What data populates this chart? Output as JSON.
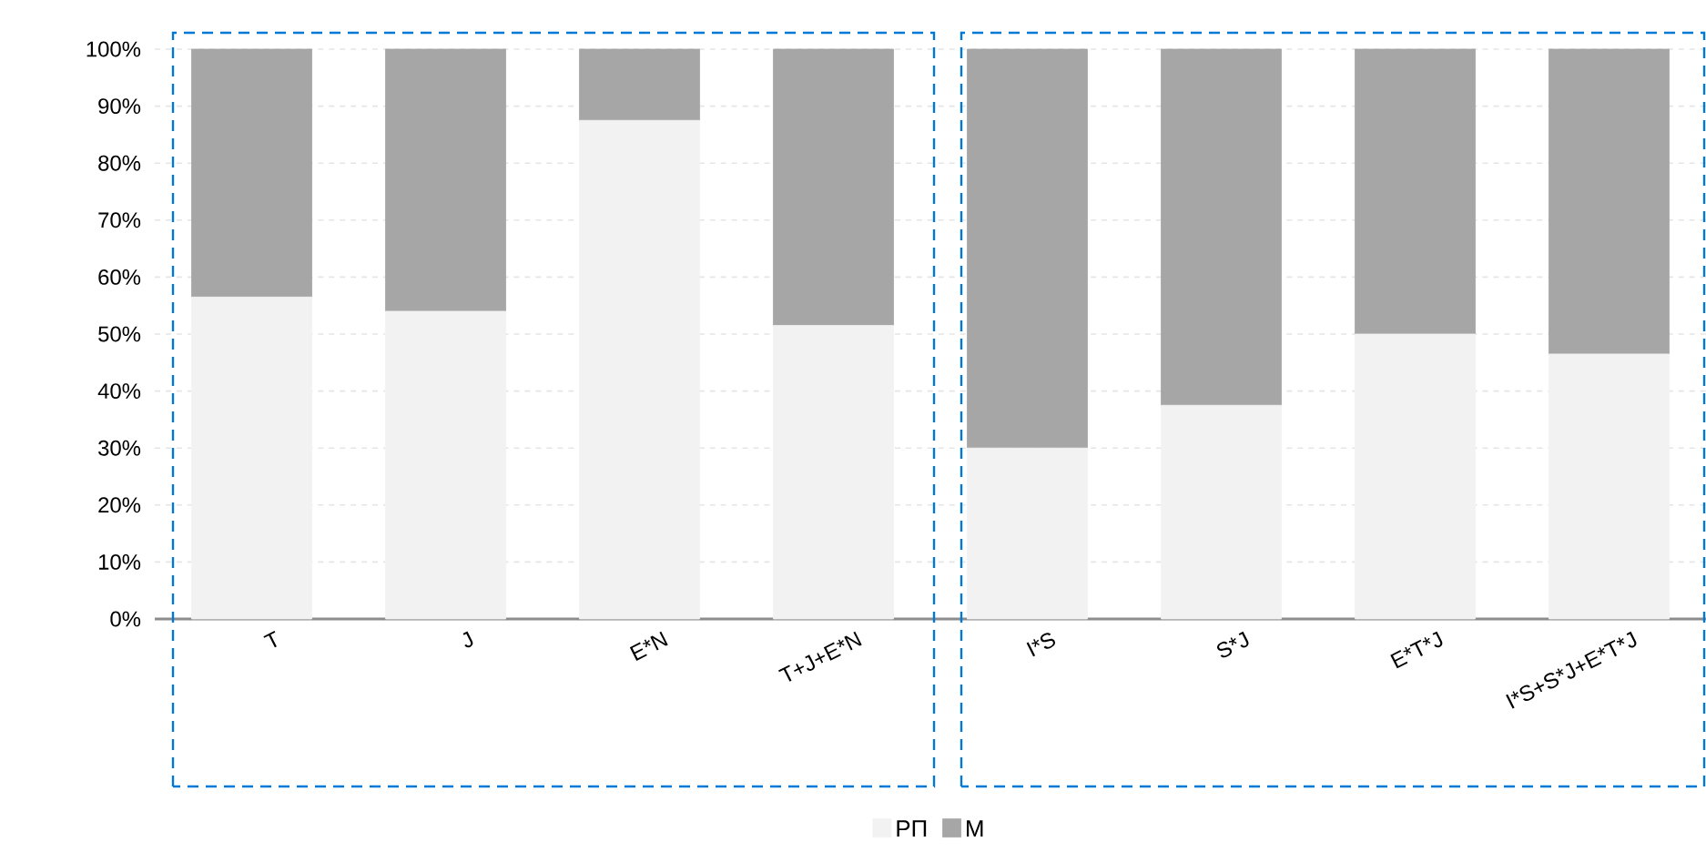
{
  "chart_data": {
    "type": "bar",
    "stacked": true,
    "categories": [
      "T",
      "J",
      "E*N",
      "T+J+E*N",
      "I*S",
      "S*J",
      "E*T*J",
      "I*S+S*J+E*T*J"
    ],
    "series": [
      {
        "name": "РП",
        "color": "#f2f2f2",
        "values": [
          56.5,
          54,
          87.5,
          51.5,
          30,
          37.5,
          50,
          46.5
        ]
      },
      {
        "name": "М",
        "color": "#a6a6a6",
        "values": [
          43.5,
          46,
          12.5,
          48.5,
          70,
          62.5,
          50,
          53.5
        ]
      }
    ],
    "ylim": [
      0,
      100
    ],
    "yticks": [
      {
        "value": 0,
        "label": "0%"
      },
      {
        "value": 10,
        "label": "10%"
      },
      {
        "value": 20,
        "label": "20%"
      },
      {
        "value": 30,
        "label": "30%"
      },
      {
        "value": 40,
        "label": "40%"
      },
      {
        "value": 50,
        "label": "50%"
      },
      {
        "value": 60,
        "label": "60%"
      },
      {
        "value": 70,
        "label": "70%"
      },
      {
        "value": 80,
        "label": "80%"
      },
      {
        "value": 90,
        "label": "90%"
      },
      {
        "value": 100,
        "label": "100%"
      }
    ],
    "grid": "y",
    "legend": "bottom"
  }
}
